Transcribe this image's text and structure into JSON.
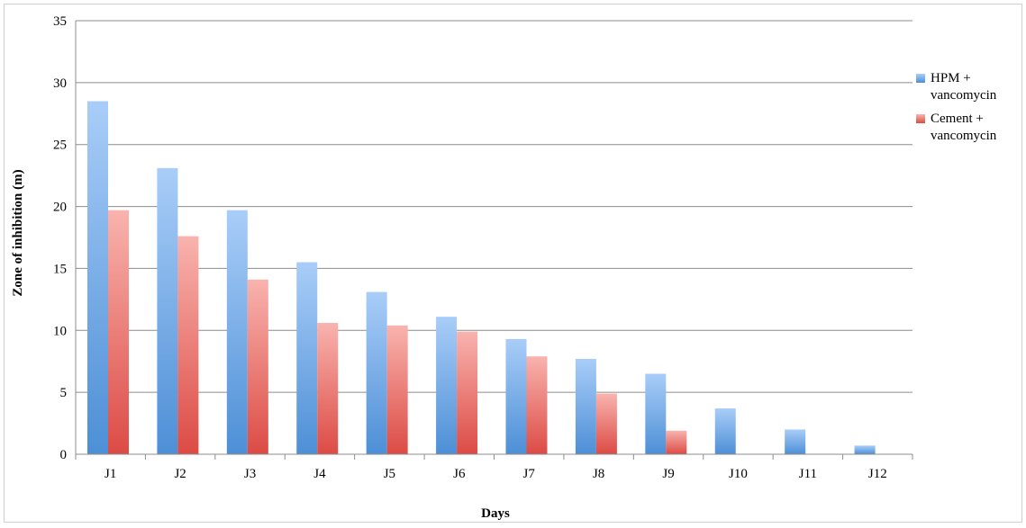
{
  "chart_data": {
    "type": "bar",
    "title": "",
    "xlabel": "Days",
    "ylabel": "Zone of inhibition (m)",
    "categories": [
      "J1",
      "J2",
      "J3",
      "J4",
      "J5",
      "J6",
      "J7",
      "J8",
      "J9",
      "J10",
      "J11",
      "J12"
    ],
    "series": [
      {
        "name": "HPM + vancomycin",
        "name_lines": [
          "HPM +",
          "vancomycin"
        ],
        "color": "#5b9bd5",
        "values": [
          28.5,
          23.1,
          19.7,
          15.5,
          13.1,
          11.1,
          9.3,
          7.7,
          6.5,
          3.7,
          2.0,
          0.7
        ]
      },
      {
        "name": "Cement + vancomycin",
        "name_lines": [
          "Cement +",
          "vancomycin"
        ],
        "color": "#e05a55",
        "values": [
          19.7,
          17.6,
          14.1,
          10.6,
          10.4,
          9.9,
          7.9,
          4.9,
          1.9,
          0,
          0,
          0
        ]
      }
    ],
    "ylim": [
      0,
      35
    ],
    "yticks": [
      0,
      5,
      10,
      15,
      20,
      25,
      30,
      35
    ],
    "grid": true,
    "legend_position": "right"
  }
}
